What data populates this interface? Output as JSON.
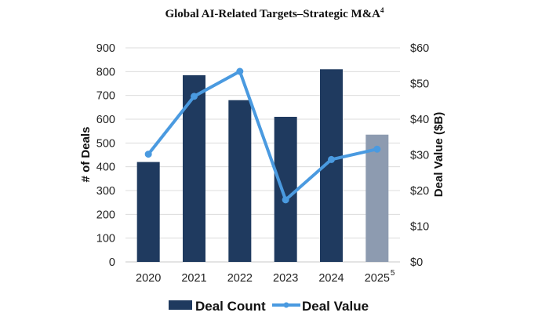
{
  "chart_data": {
    "type": "bar",
    "title": "Global AI-Related Targets–Strategic M&A",
    "title_footnote": "4",
    "categories": [
      "2020",
      "2021",
      "2022",
      "2023",
      "2024",
      "2025"
    ],
    "category_footnotes": {
      "2025": "5"
    },
    "series": [
      {
        "name": "Deal Count",
        "type": "bar",
        "axis": "left",
        "values": [
          420,
          785,
          680,
          610,
          810,
          535
        ],
        "color": "#1f3a5f",
        "highlight": {
          "index": 5,
          "color": "#8d9bb0"
        }
      },
      {
        "name": "Deal Value",
        "type": "line",
        "axis": "right",
        "values": [
          30.2,
          46.4,
          53.4,
          17.4,
          28.7,
          31.6
        ],
        "color": "#4a9ae0"
      }
    ],
    "ylabel": "# of Deals",
    "ylim": [
      0,
      900
    ],
    "yticks": [
      "0",
      "100",
      "200",
      "300",
      "400",
      "500",
      "600",
      "700",
      "800",
      "900"
    ],
    "y2label": "Deal Value ($B)",
    "y2lim": [
      0,
      60
    ],
    "y2ticks": [
      "$0",
      "$10",
      "$20",
      "$30",
      "$40",
      "$50",
      "$60"
    ],
    "grid": true,
    "legend": "bottom-center"
  }
}
